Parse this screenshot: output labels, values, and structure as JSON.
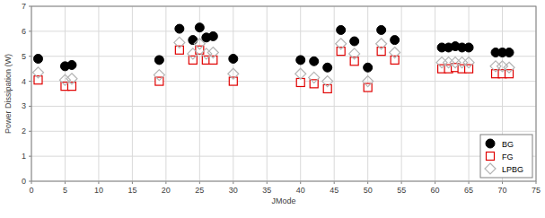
{
  "chart_data": {
    "type": "scatter",
    "x_label": "JMode",
    "y_label": "Power Dissipation (W)",
    "x": [
      1,
      5,
      6,
      19,
      22,
      24,
      25,
      26,
      27,
      30,
      40,
      42,
      44,
      46,
      48,
      50,
      52,
      54,
      61,
      62,
      63,
      64,
      65,
      69,
      70,
      71
    ],
    "series": [
      {
        "name": "BG",
        "color": "#000000",
        "marker": "circle",
        "values": [
          4.9,
          4.6,
          4.65,
          4.85,
          6.1,
          5.65,
          6.15,
          5.75,
          5.8,
          4.9,
          4.85,
          4.8,
          4.55,
          6.05,
          5.6,
          4.55,
          6.05,
          5.65,
          5.35,
          5.35,
          5.4,
          5.35,
          5.35,
          5.15,
          5.15,
          5.15
        ]
      },
      {
        "name": "FG",
        "color": "#e00000",
        "marker": "square",
        "values": [
          4.05,
          3.8,
          3.8,
          4.0,
          5.25,
          4.85,
          5.25,
          4.85,
          4.85,
          4.0,
          3.95,
          3.9,
          3.7,
          5.2,
          4.8,
          3.75,
          5.2,
          4.85,
          4.5,
          4.5,
          4.55,
          4.5,
          4.5,
          4.3,
          4.3,
          4.3
        ]
      },
      {
        "name": "LPBG",
        "color": "#b4b4b4",
        "marker": "diamond",
        "values": [
          4.35,
          4.05,
          4.1,
          4.25,
          5.55,
          5.1,
          5.5,
          5.1,
          5.15,
          4.3,
          4.3,
          4.15,
          4.0,
          5.5,
          5.1,
          4.0,
          5.5,
          5.15,
          4.75,
          4.75,
          4.75,
          4.75,
          4.75,
          4.6,
          4.6,
          4.55
        ]
      }
    ],
    "xlim": [
      0,
      75
    ],
    "xticks": [
      0,
      5,
      10,
      15,
      20,
      25,
      30,
      35,
      40,
      45,
      50,
      55,
      60,
      65,
      70,
      75
    ],
    "ylim": [
      0,
      7
    ],
    "yticks": [
      0,
      1,
      2,
      3,
      4,
      5,
      6,
      7
    ],
    "grid": true,
    "legend": "bottom-right"
  }
}
